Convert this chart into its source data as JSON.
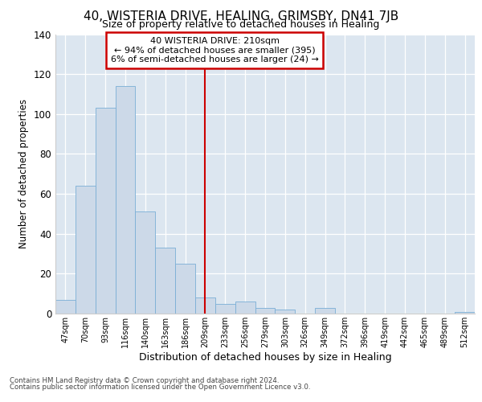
{
  "title": "40, WISTERIA DRIVE, HEALING, GRIMSBY, DN41 7JB",
  "subtitle": "Size of property relative to detached houses in Healing",
  "xlabel": "Distribution of detached houses by size in Healing",
  "ylabel": "Number of detached properties",
  "annotation_line1": "40 WISTERIA DRIVE: 210sqm",
  "annotation_line2": "← 94% of detached houses are smaller (395)",
  "annotation_line3": "6% of semi-detached houses are larger (24) →",
  "bar_color": "#ccd9e8",
  "bar_edge_color": "#7aaed6",
  "annotation_box_color": "#ffffff",
  "annotation_box_edge": "#cc0000",
  "property_line_color": "#cc0000",
  "background_color": "#dce6f0",
  "grid_color": "#ffffff",
  "fig_background": "#ffffff",
  "footer_line1": "Contains HM Land Registry data © Crown copyright and database right 2024.",
  "footer_line2": "Contains public sector information licensed under the Open Government Licence v3.0.",
  "categories": [
    "47sqm",
    "70sqm",
    "93sqm",
    "116sqm",
    "140sqm",
    "163sqm",
    "186sqm",
    "209sqm",
    "233sqm",
    "256sqm",
    "279sqm",
    "303sqm",
    "326sqm",
    "349sqm",
    "372sqm",
    "396sqm",
    "419sqm",
    "442sqm",
    "465sqm",
    "489sqm",
    "512sqm"
  ],
  "values": [
    7,
    64,
    103,
    114,
    51,
    33,
    25,
    8,
    5,
    6,
    3,
    2,
    0,
    3,
    0,
    0,
    0,
    0,
    0,
    0,
    1
  ],
  "ylim": [
    0,
    140
  ],
  "yticks": [
    0,
    20,
    40,
    60,
    80,
    100,
    120,
    140
  ]
}
